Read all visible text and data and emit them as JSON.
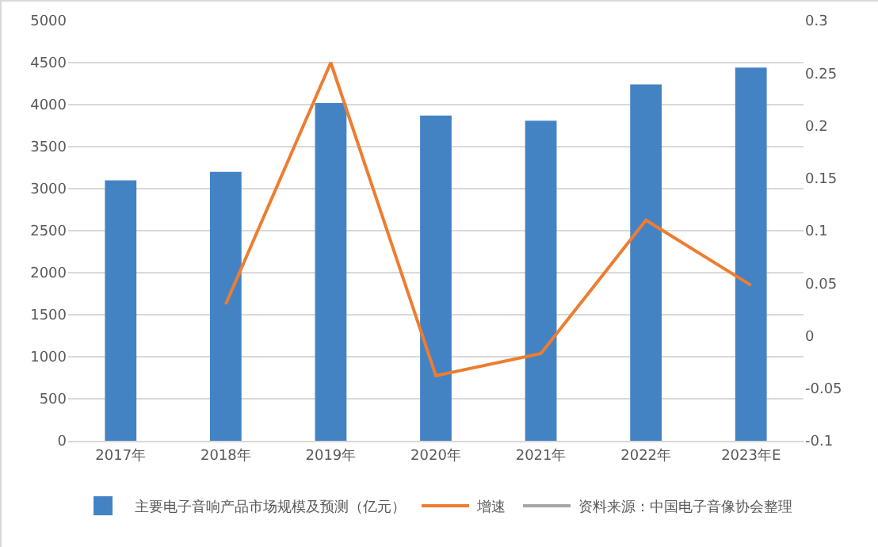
{
  "chart_data": {
    "type": "bar",
    "categories": [
      "2017年",
      "2018年",
      "2019年",
      "2020年",
      "2021年",
      "2022年",
      "2023年E"
    ],
    "series": [
      {
        "name": "主要电子音响产品市场规模及预测（亿元）",
        "color": "#4383c4",
        "values": [
          3100,
          3200,
          4020,
          3870,
          3810,
          4240,
          4440
        ]
      },
      {
        "name": "增速",
        "type": "line",
        "axis": "y2",
        "color": "#ed7d31",
        "values": [
          null,
          0.03,
          0.26,
          -0.038,
          -0.017,
          0.11,
          0.048
        ]
      },
      {
        "name": "资料来源：中国电子音像协会整理",
        "type": "line",
        "color": "#a5a5a5",
        "values": [
          null,
          null,
          null,
          null,
          null,
          null,
          null
        ]
      }
    ],
    "ylim": [
      0,
      5000
    ],
    "yticks": [
      0,
      500,
      1000,
      1500,
      2000,
      2500,
      3000,
      3500,
      4000,
      4500,
      5000
    ],
    "y2lim": [
      -0.1,
      0.3
    ],
    "y2ticks": [
      -0.1,
      -0.05,
      0,
      0.05,
      0.1,
      0.15,
      0.2,
      0.25,
      0.3
    ],
    "grid": "y",
    "legend": "bottom",
    "marker": "none",
    "line_style": "solid"
  }
}
